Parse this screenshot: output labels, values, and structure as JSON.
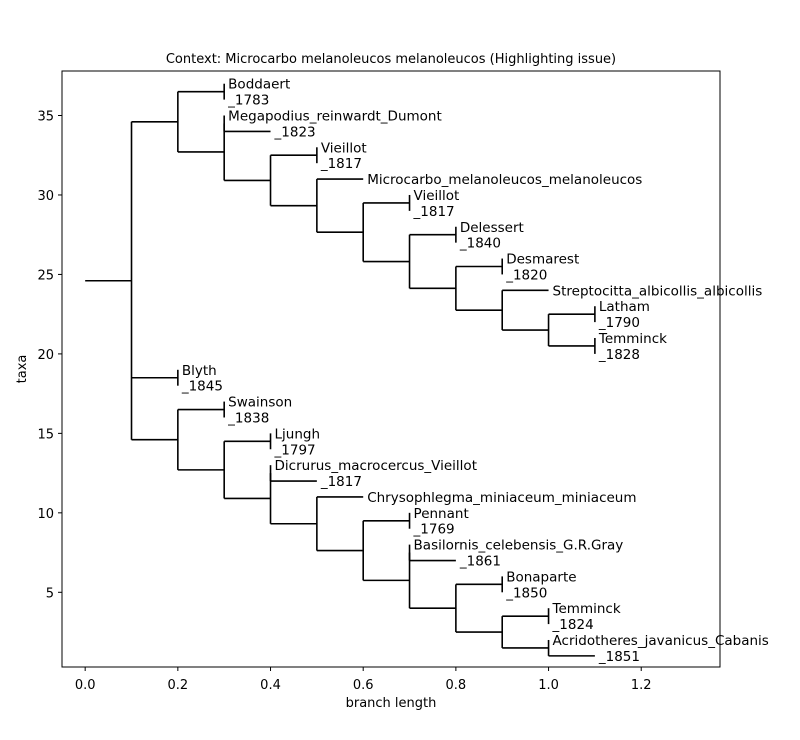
{
  "chart_data": {
    "type": "tree",
    "title": "Context: Microcarbo melanoleucos melanoleucos (Highlighting issue)",
    "xlabel": "branch length",
    "ylabel": "taxa",
    "xlim": [
      -0.05,
      1.37
    ],
    "ylim": [
      37.8,
      0.3
    ],
    "grid": false,
    "x_ticks": [
      {
        "value": 0.0,
        "label": "0.0"
      },
      {
        "value": 0.2,
        "label": "0.2"
      },
      {
        "value": 0.4,
        "label": "0.4"
      },
      {
        "value": 0.6,
        "label": "0.6"
      },
      {
        "value": 0.8,
        "label": "0.8"
      },
      {
        "value": 1.0,
        "label": "1.0"
      },
      {
        "value": 1.2,
        "label": "1.2"
      }
    ],
    "y_ticks": [
      {
        "value": 5,
        "label": "5"
      },
      {
        "value": 10,
        "label": "10"
      },
      {
        "value": 15,
        "label": "15"
      },
      {
        "value": 20,
        "label": "20"
      },
      {
        "value": 25,
        "label": "25"
      },
      {
        "value": 30,
        "label": "30"
      },
      {
        "value": 35,
        "label": "35"
      }
    ],
    "tree": {
      "x": 0.1,
      "stem": 0.0,
      "children": [
        {
          "x": 0.2,
          "children": [
            {
              "x": 0.3,
              "children": [
                {
                  "x": 0.4,
                  "children": [
                    {
                      "x": 0.5,
                      "children": [
                        {
                          "x": 0.6,
                          "children": [
                            {
                              "x": 0.7,
                              "children": [
                                {
                                  "x": 0.8,
                                  "children": [
                                    {
                                      "x": 0.9,
                                      "children": [
                                        {
                                          "x": 1.0,
                                          "children": [
                                            {
                                              "x": 1.1,
                                              "y": 1,
                                              "label": "_1851"
                                            },
                                            {
                                              "x": 1.0,
                                              "y": 2,
                                              "label": "Acridotheres_javanicus_Cabanis"
                                            }
                                          ]
                                        },
                                        {
                                          "x": 1.0,
                                          "children": [
                                            {
                                              "x": 1.0,
                                              "y": 3,
                                              "label": "_1824"
                                            },
                                            {
                                              "x": 1.0,
                                              "y": 4,
                                              "label": "Temminck"
                                            }
                                          ]
                                        }
                                      ]
                                    },
                                    {
                                      "x": 0.9,
                                      "children": [
                                        {
                                          "x": 0.9,
                                          "y": 5,
                                          "label": "_1850"
                                        },
                                        {
                                          "x": 0.9,
                                          "y": 6,
                                          "label": "Bonaparte"
                                        }
                                      ]
                                    }
                                  ]
                                },
                                {
                                  "x": 0.7,
                                  "children": [
                                    {
                                      "x": 0.8,
                                      "y": 7,
                                      "label": "_1861"
                                    },
                                    {
                                      "x": 0.7,
                                      "y": 8,
                                      "label": "Basilornis_celebensis_G.R.Gray"
                                    }
                                  ]
                                }
                              ]
                            },
                            {
                              "x": 0.7,
                              "children": [
                                {
                                  "x": 0.7,
                                  "y": 9,
                                  "label": "_1769"
                                },
                                {
                                  "x": 0.7,
                                  "y": 10,
                                  "label": "Pennant"
                                }
                              ]
                            }
                          ]
                        },
                        {
                          "x": 0.6,
                          "y": 11,
                          "label": "Chrysophlegma_miniaceum_miniaceum"
                        }
                      ]
                    },
                    {
                      "x": 0.4,
                      "children": [
                        {
                          "x": 0.5,
                          "y": 12,
                          "label": "_1817"
                        },
                        {
                          "x": 0.4,
                          "y": 13,
                          "label": "Dicrurus_macrocercus_Vieillot"
                        }
                      ]
                    }
                  ]
                },
                {
                  "x": 0.4,
                  "children": [
                    {
                      "x": 0.4,
                      "y": 14,
                      "label": "_1797"
                    },
                    {
                      "x": 0.4,
                      "y": 15,
                      "label": "Ljungh"
                    }
                  ]
                }
              ]
            },
            {
              "x": 0.3,
              "children": [
                {
                  "x": 0.3,
                  "y": 16,
                  "label": "_1838"
                },
                {
                  "x": 0.3,
                  "y": 17,
                  "label": "Swainson"
                }
              ]
            }
          ]
        },
        {
          "x": 0.2,
          "children": [
            {
              "x": 0.2,
              "y": 18,
              "label": "_1845"
            },
            {
              "x": 0.2,
              "y": 19,
              "label": "Blyth"
            }
          ]
        },
        {
          "x": 0.2,
          "children": [
            {
              "x": 0.3,
              "children": [
                {
                  "x": 0.4,
                  "children": [
                    {
                      "x": 0.5,
                      "children": [
                        {
                          "x": 0.6,
                          "children": [
                            {
                              "x": 0.7,
                              "children": [
                                {
                                  "x": 0.8,
                                  "children": [
                                    {
                                      "x": 0.9,
                                      "children": [
                                        {
                                          "x": 1.0,
                                          "children": [
                                            {
                                              "x": 1.1,
                                              "children": [
                                                {
                                                  "x": 1.1,
                                                  "y": 20,
                                                  "label": "_1828"
                                                },
                                                {
                                                  "x": 1.1,
                                                  "y": 21,
                                                  "label": "Temminck"
                                                }
                                              ]
                                            },
                                            {
                                              "x": 1.1,
                                              "children": [
                                                {
                                                  "x": 1.1,
                                                  "y": 22,
                                                  "label": "_1790"
                                                },
                                                {
                                                  "x": 1.1,
                                                  "y": 23,
                                                  "label": "Latham"
                                                }
                                              ]
                                            }
                                          ]
                                        },
                                        {
                                          "x": 1.0,
                                          "y": 24,
                                          "label": "Streptocitta_albicollis_albicollis"
                                        }
                                      ]
                                    },
                                    {
                                      "x": 0.9,
                                      "children": [
                                        {
                                          "x": 0.9,
                                          "y": 25,
                                          "label": "_1820"
                                        },
                                        {
                                          "x": 0.9,
                                          "y": 26,
                                          "label": "Desmarest"
                                        }
                                      ]
                                    }
                                  ]
                                },
                                {
                                  "x": 0.8,
                                  "children": [
                                    {
                                      "x": 0.8,
                                      "y": 27,
                                      "label": "_1840"
                                    },
                                    {
                                      "x": 0.8,
                                      "y": 28,
                                      "label": "Delessert"
                                    }
                                  ]
                                }
                              ]
                            },
                            {
                              "x": 0.7,
                              "children": [
                                {
                                  "x": 0.7,
                                  "y": 29,
                                  "label": "_1817"
                                },
                                {
                                  "x": 0.7,
                                  "y": 30,
                                  "label": "Vieillot"
                                }
                              ]
                            }
                          ]
                        },
                        {
                          "x": 0.6,
                          "y": 31,
                          "label": "Microcarbo_melanoleucos_melanoleucos"
                        }
                      ]
                    },
                    {
                      "x": 0.5,
                      "children": [
                        {
                          "x": 0.5,
                          "y": 32,
                          "label": "_1817"
                        },
                        {
                          "x": 0.5,
                          "y": 33,
                          "label": "Vieillot"
                        }
                      ]
                    }
                  ]
                },
                {
                  "x": 0.3,
                  "children": [
                    {
                      "x": 0.4,
                      "y": 34,
                      "label": "_1823"
                    },
                    {
                      "x": 0.3,
                      "y": 35,
                      "label": "Megapodius_reinwardt_Dumont"
                    }
                  ]
                }
              ]
            },
            {
              "x": 0.3,
              "children": [
                {
                  "x": 0.3,
                  "y": 36,
                  "label": "_1783"
                },
                {
                  "x": 0.3,
                  "y": 37,
                  "label": "Boddaert"
                }
              ]
            }
          ]
        }
      ]
    },
    "colors": {
      "line": "#000000",
      "background": "#ffffff"
    }
  }
}
